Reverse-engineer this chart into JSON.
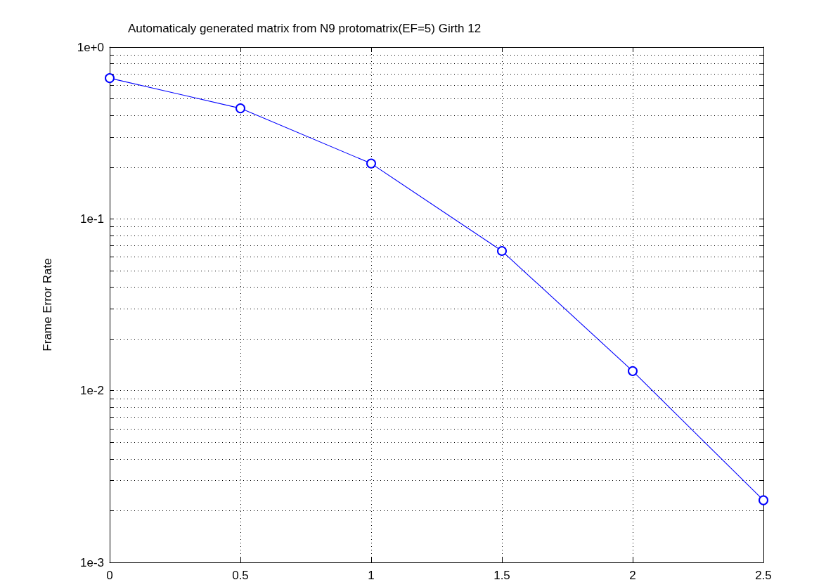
{
  "chart_data": {
    "type": "line",
    "title": "Automaticaly generated matrix from N9 protomatrix(EF=5) Girth 12",
    "ylabel": "Frame Error Rate",
    "x": [
      0,
      0.5,
      1,
      1.5,
      2,
      2.5
    ],
    "series": [
      {
        "color": "#0000ff",
        "values": [
          0.66,
          0.44,
          0.21,
          0.065,
          0.013,
          0.0023
        ]
      }
    ],
    "xlim": [
      0,
      2.5
    ],
    "xticks": [
      0,
      0.5,
      1,
      1.5,
      2,
      2.5
    ],
    "ylim": [
      0.001,
      1
    ],
    "yticks": [
      {
        "value": 0.001,
        "label": "1e-3"
      },
      {
        "value": 0.002,
        "label": null
      },
      {
        "value": 0.003,
        "label": null
      },
      {
        "value": 0.004,
        "label": null
      },
      {
        "value": 0.005,
        "label": null
      },
      {
        "value": 0.006,
        "label": null
      },
      {
        "value": 0.007,
        "label": null
      },
      {
        "value": 0.008,
        "label": null
      },
      {
        "value": 0.009,
        "label": null
      },
      {
        "value": 0.01,
        "label": "1e-2"
      },
      {
        "value": 0.02,
        "label": null
      },
      {
        "value": 0.03,
        "label": null
      },
      {
        "value": 0.04,
        "label": null
      },
      {
        "value": 0.05,
        "label": null
      },
      {
        "value": 0.06,
        "label": null
      },
      {
        "value": 0.07,
        "label": null
      },
      {
        "value": 0.08,
        "label": null
      },
      {
        "value": 0.09,
        "label": null
      },
      {
        "value": 0.1,
        "label": "1e-1"
      },
      {
        "value": 0.2,
        "label": null
      },
      {
        "value": 0.3,
        "label": null
      },
      {
        "value": 0.4,
        "label": null
      },
      {
        "value": 0.5,
        "label": null
      },
      {
        "value": 0.6,
        "label": null
      },
      {
        "value": 0.7,
        "label": null
      },
      {
        "value": 0.8,
        "label": null
      },
      {
        "value": 0.9,
        "label": null
      },
      {
        "value": 1,
        "label": "1e+0"
      }
    ],
    "log": true,
    "grid": true,
    "marker": "circle",
    "line_style": "solid"
  }
}
